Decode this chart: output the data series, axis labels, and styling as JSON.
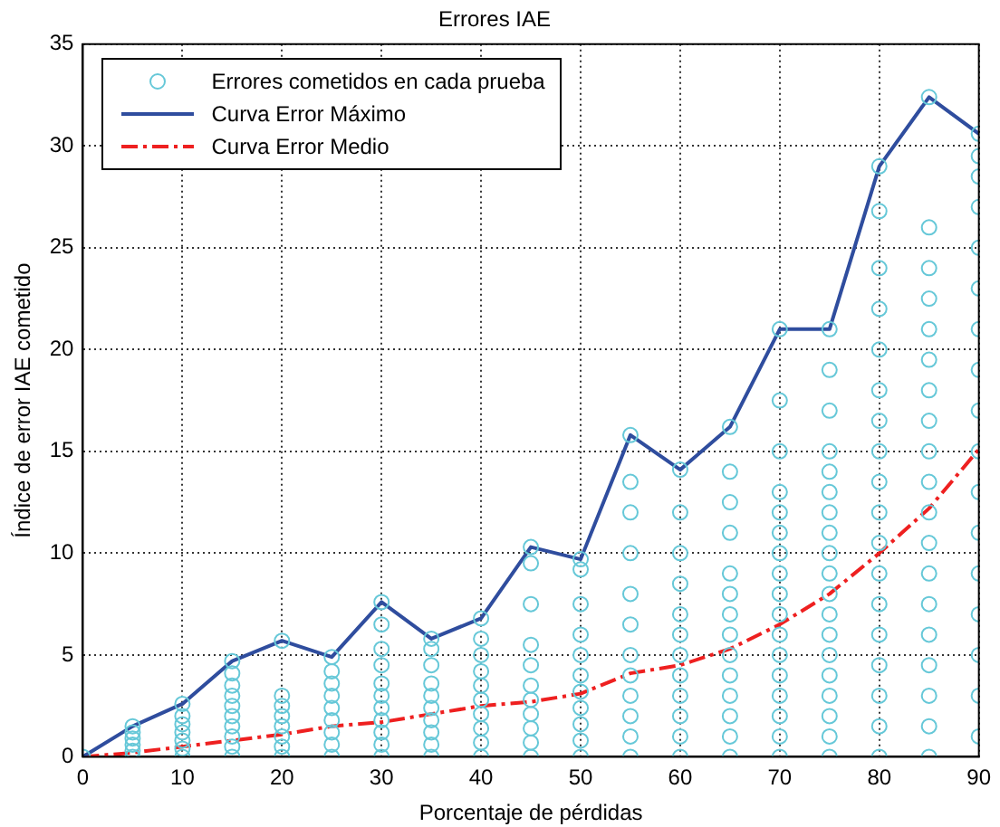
{
  "chart_data": {
    "type": "scatter",
    "title": "Errores IAE",
    "xlabel": "Porcentaje de pérdidas",
    "ylabel": "Índice de error IAE cometido",
    "xlim": [
      0,
      90
    ],
    "xticks": [
      0,
      10,
      20,
      30,
      40,
      50,
      60,
      70,
      80,
      90
    ],
    "ylim": [
      0,
      35
    ],
    "yticks": [
      0,
      5,
      10,
      15,
      20,
      25,
      30,
      35
    ],
    "grid": true,
    "legend": "top left",
    "series": [
      {
        "name": "Errores cometidos en cada prueba",
        "type": "scatter",
        "marker": "circle",
        "color": "#66c8d8",
        "x": [
          0,
          5,
          5,
          5,
          5,
          5,
          5,
          10,
          10,
          10,
          10,
          10,
          10,
          10,
          15,
          15,
          15,
          15,
          15,
          15,
          15,
          15,
          15,
          15,
          20,
          20,
          20,
          20,
          20,
          20,
          20,
          20,
          25,
          25,
          25,
          25,
          25,
          25,
          25,
          25,
          25,
          30,
          30,
          30,
          30,
          30,
          30,
          30,
          30,
          30,
          30,
          30,
          35,
          35,
          35,
          35,
          35,
          35,
          35,
          35,
          35,
          35,
          40,
          40,
          40,
          40,
          40,
          40,
          40,
          40,
          40,
          40,
          45,
          45,
          45,
          45,
          45,
          45,
          45,
          45,
          45,
          45,
          45,
          50,
          50,
          50,
          50,
          50,
          50,
          50,
          50,
          50,
          50,
          50,
          55,
          55,
          55,
          55,
          55,
          55,
          55,
          55,
          55,
          55,
          55,
          55,
          60,
          60,
          60,
          60,
          60,
          60,
          60,
          60,
          60,
          60,
          60,
          60,
          65,
          65,
          65,
          65,
          65,
          65,
          65,
          65,
          65,
          65,
          65,
          65,
          65,
          65,
          70,
          70,
          70,
          70,
          70,
          70,
          70,
          70,
          70,
          70,
          70,
          70,
          70,
          70,
          70,
          70,
          70,
          75,
          75,
          75,
          75,
          75,
          75,
          75,
          75,
          75,
          75,
          75,
          75,
          75,
          75,
          75,
          75,
          75,
          75,
          75,
          80,
          80,
          80,
          80,
          80,
          80,
          80,
          80,
          80,
          80,
          80,
          80,
          80,
          80,
          80,
          80,
          80,
          80,
          85,
          85,
          85,
          85,
          85,
          85,
          85,
          85,
          85,
          85,
          85,
          85,
          85,
          85,
          85,
          85,
          85,
          85,
          85,
          90,
          90,
          90,
          90,
          90,
          90,
          90,
          90,
          90,
          90,
          90,
          90,
          90,
          90,
          90,
          90,
          90
        ],
        "values": [
          0,
          0,
          0.3,
          0.6,
          0.9,
          1.2,
          1.5,
          0,
          0.4,
          0.8,
          1.2,
          1.6,
          2,
          2.6,
          0,
          0.5,
          1,
          1.5,
          2,
          2.5,
          3,
          3.5,
          4.1,
          4.7,
          0,
          0.5,
          1,
          1.5,
          2,
          2.5,
          3,
          5.7,
          0,
          0.6,
          1.2,
          1.8,
          2.4,
          3,
          3.6,
          4.2,
          4.9,
          0,
          0.6,
          1.2,
          1.8,
          2.4,
          3,
          3.6,
          4.5,
          5.3,
          6.5,
          7.6,
          0,
          0.6,
          1.2,
          1.8,
          2.4,
          3,
          3.6,
          4.5,
          5.3,
          5.8,
          0,
          0.7,
          1.4,
          2.1,
          2.8,
          3.5,
          4.2,
          5,
          5.8,
          6.8,
          0,
          0.7,
          1.4,
          2.1,
          2.8,
          3.5,
          4.5,
          5.5,
          7.5,
          9.5,
          10.3,
          0,
          0.8,
          1.6,
          2.4,
          3.2,
          4,
          5,
          6,
          7.5,
          9.2,
          9.7,
          0,
          1,
          2,
          3,
          4,
          5,
          6.5,
          8,
          10,
          12,
          13.5,
          15.8,
          0,
          1,
          2,
          3,
          4,
          5,
          6,
          7,
          8.5,
          10,
          12,
          14.1,
          0,
          1,
          2,
          3,
          4,
          5,
          6,
          7,
          8,
          9,
          11,
          12.5,
          14,
          16.2,
          0,
          1,
          2,
          3,
          4,
          5,
          6,
          7,
          8,
          9,
          10,
          11,
          12,
          13,
          15,
          17.5,
          21,
          0,
          1,
          2,
          3,
          4,
          5,
          6,
          7,
          8,
          9,
          10,
          11,
          12,
          13,
          14,
          15,
          17,
          19,
          21,
          0,
          1.5,
          3,
          4.5,
          6,
          7.5,
          9,
          10.5,
          12,
          13.5,
          15,
          16.5,
          18,
          20,
          22,
          24,
          26.8,
          29,
          0,
          1.5,
          3,
          4.5,
          6,
          7.5,
          9,
          10.5,
          12,
          13.5,
          15,
          16.5,
          18,
          19.5,
          21,
          22.5,
          24,
          26,
          32.4,
          1,
          3,
          5,
          7,
          9,
          11,
          13,
          15,
          17,
          19,
          21,
          23,
          25,
          27,
          28.5,
          29.5,
          30.6
        ]
      },
      {
        "name": "Curva Error Máximo",
        "type": "line",
        "marker": "none",
        "line_style": "solid",
        "color": "#2f4d9e",
        "x": [
          0,
          5,
          10,
          15,
          20,
          25,
          30,
          35,
          40,
          45,
          50,
          55,
          60,
          65,
          70,
          75,
          80,
          85,
          90
        ],
        "values": [
          0,
          1.5,
          2.6,
          4.7,
          5.7,
          4.9,
          7.6,
          5.8,
          6.8,
          10.3,
          9.7,
          15.8,
          14.1,
          16.2,
          21,
          21,
          29,
          32.4,
          30.6
        ]
      },
      {
        "name": "Curva Error Medio",
        "type": "line",
        "marker": "none",
        "line_style": "dashed",
        "color": "#ee2020",
        "x": [
          0,
          5,
          10,
          15,
          20,
          25,
          30,
          35,
          40,
          45,
          50,
          55,
          60,
          65,
          70,
          75,
          80,
          85,
          90
        ],
        "values": [
          0,
          0.2,
          0.5,
          0.8,
          1.1,
          1.5,
          1.7,
          2.1,
          2.5,
          2.7,
          3.1,
          4.1,
          4.5,
          5.3,
          6.5,
          8,
          10,
          12.2,
          15.1
        ]
      }
    ]
  }
}
